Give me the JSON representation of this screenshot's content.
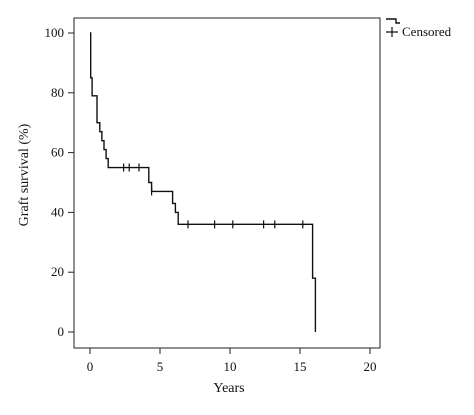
{
  "chart_data": {
    "type": "line",
    "subtype": "kaplan-meier-step",
    "xlabel": "Years",
    "ylabel": "Graft survival (%)",
    "xlim": [
      0,
      20
    ],
    "ylim": [
      0,
      100
    ],
    "xticks": [
      0,
      5,
      10,
      15,
      20
    ],
    "yticks": [
      0,
      20,
      40,
      60,
      80,
      100
    ],
    "grid": false,
    "legend": {
      "placement": "top-right outside",
      "entries": [
        {
          "label": "Censored",
          "marker": "+"
        }
      ]
    },
    "series": [
      {
        "curve_type": "step",
        "color": "#111111",
        "points": [
          {
            "x": 0.0,
            "y": 100
          },
          {
            "x": 0.05,
            "y": 85
          },
          {
            "x": 0.15,
            "y": 79
          },
          {
            "x": 0.5,
            "y": 70
          },
          {
            "x": 0.7,
            "y": 67
          },
          {
            "x": 0.85,
            "y": 64
          },
          {
            "x": 1.0,
            "y": 61
          },
          {
            "x": 1.15,
            "y": 58
          },
          {
            "x": 1.3,
            "y": 55
          },
          {
            "x": 4.2,
            "y": 50
          },
          {
            "x": 4.4,
            "y": 47
          },
          {
            "x": 5.9,
            "y": 43
          },
          {
            "x": 6.1,
            "y": 40
          },
          {
            "x": 6.3,
            "y": 36
          },
          {
            "x": 15.9,
            "y": 18
          },
          {
            "x": 16.1,
            "y": 0
          }
        ],
        "censored": [
          {
            "x": 2.4,
            "y": 55
          },
          {
            "x": 2.8,
            "y": 55
          },
          {
            "x": 3.5,
            "y": 55
          },
          {
            "x": 4.4,
            "y": 47
          },
          {
            "x": 7.0,
            "y": 36
          },
          {
            "x": 8.9,
            "y": 36
          },
          {
            "x": 10.2,
            "y": 36
          },
          {
            "x": 12.4,
            "y": 36
          },
          {
            "x": 13.2,
            "y": 36
          },
          {
            "x": 15.2,
            "y": 36
          }
        ]
      }
    ]
  }
}
